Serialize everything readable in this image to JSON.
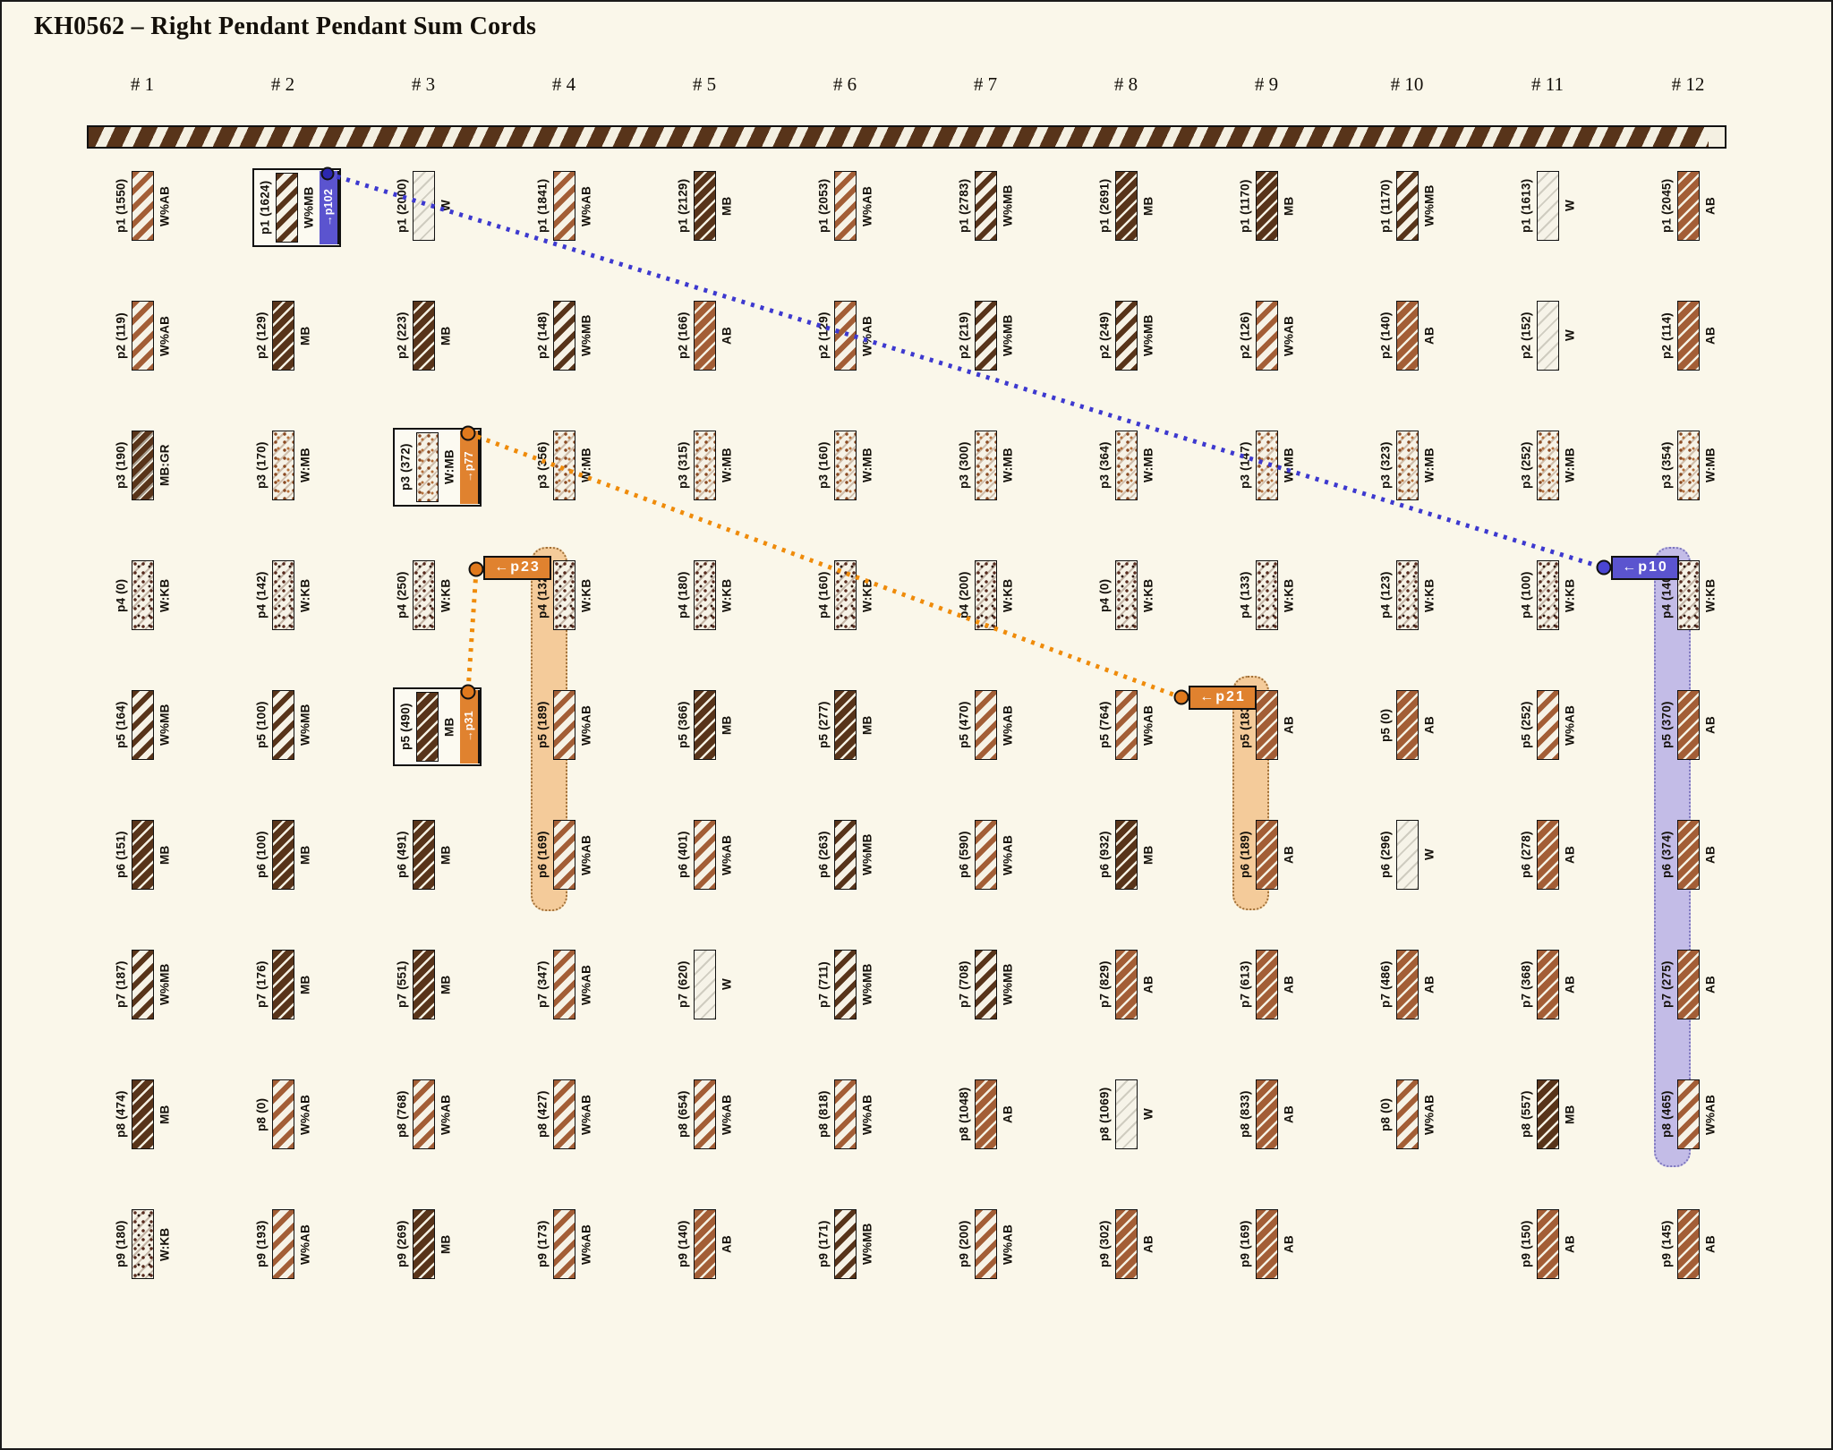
{
  "title": "KH0562 – Right Pendant Pendant Sum Cords",
  "palette": {
    "background": "#faf7ea",
    "cord_dark_brown": "#58341a",
    "cord_light_brown": "#a35e36",
    "blue_accent": "#5b54cf",
    "blue_line": "#3d39cf",
    "orange_accent": "#e0822f",
    "orange_line": "#ef8b0a"
  },
  "links": {
    "blue": {
      "source_badge": "→p102",
      "source_cell": "# 2 p1",
      "target_badge": "←p10",
      "band_column": "# 12",
      "band_rows": "p4–p8"
    },
    "orange_long": {
      "source_badge": "→p77",
      "source_cell": "# 3 p3",
      "target_badge": "←p21",
      "band_column": "# 9",
      "band_rows": "p5–p6"
    },
    "orange_short": {
      "source_badge": "→p31",
      "source_cell": "# 3 p5",
      "target_badge": "←p23",
      "band_column": "# 4",
      "band_rows": "p4–p6"
    }
  },
  "columns": [
    {
      "header": "# 1",
      "cells": [
        {
          "row": "p1",
          "label": "p1 (1550)",
          "code": "W%AB"
        },
        {
          "row": "p2",
          "label": "p2 (119)",
          "code": "W%AB"
        },
        {
          "row": "p3",
          "label": "p3 (190)",
          "code": "MB:GR"
        },
        {
          "row": "p4",
          "label": "p4 (0)",
          "code": "W:KB"
        },
        {
          "row": "p5",
          "label": "p5 (164)",
          "code": "W%MB"
        },
        {
          "row": "p6",
          "label": "p6 (151)",
          "code": "MB"
        },
        {
          "row": "p7",
          "label": "p7 (187)",
          "code": "W%MB"
        },
        {
          "row": "p8",
          "label": "p8 (474)",
          "code": "MB"
        },
        {
          "row": "p9",
          "label": "p9 (180)",
          "code": "W:KB"
        }
      ]
    },
    {
      "header": "# 2",
      "cells": [
        {
          "row": "p1",
          "label": "p1 (1624)",
          "code": "W%MB",
          "badge": "→p102",
          "accent": "blue"
        },
        {
          "row": "p2",
          "label": "p2 (129)",
          "code": "MB"
        },
        {
          "row": "p3",
          "label": "p3 (170)",
          "code": "W:MB"
        },
        {
          "row": "p4",
          "label": "p4 (142)",
          "code": "W:KB"
        },
        {
          "row": "p5",
          "label": "p5 (100)",
          "code": "W%MB"
        },
        {
          "row": "p6",
          "label": "p6 (100)",
          "code": "MB"
        },
        {
          "row": "p7",
          "label": "p7 (176)",
          "code": "MB"
        },
        {
          "row": "p8",
          "label": "p8 (0)",
          "code": "W%AB"
        },
        {
          "row": "p9",
          "label": "p9 (193)",
          "code": "W%AB"
        }
      ]
    },
    {
      "header": "# 3",
      "cells": [
        {
          "row": "p1",
          "label": "p1 (2000)",
          "code": "W"
        },
        {
          "row": "p2",
          "label": "p2 (223)",
          "code": "MB"
        },
        {
          "row": "p3",
          "label": "p3 (372)",
          "code": "W:MB",
          "badge": "→p77",
          "accent": "orange"
        },
        {
          "row": "p4",
          "label": "p4 (250)",
          "code": "W:KB"
        },
        {
          "row": "p5",
          "label": "p5 (490)",
          "code": "MB",
          "badge": "→p31",
          "accent": "orange"
        },
        {
          "row": "p6",
          "label": "p6 (491)",
          "code": "MB"
        },
        {
          "row": "p7",
          "label": "p7 (551)",
          "code": "MB"
        },
        {
          "row": "p8",
          "label": "p8 (768)",
          "code": "W%AB"
        },
        {
          "row": "p9",
          "label": "p9 (269)",
          "code": "MB"
        }
      ]
    },
    {
      "header": "# 4",
      "cells": [
        {
          "row": "p1",
          "label": "p1 (1841)",
          "code": "W%AB"
        },
        {
          "row": "p2",
          "label": "p2 (148)",
          "code": "W%MB"
        },
        {
          "row": "p3",
          "label": "p3 (356)",
          "code": "W:MB"
        },
        {
          "row": "p4",
          "label": "p4 (132)",
          "code": "W:KB",
          "band": true
        },
        {
          "row": "p5",
          "label": "p5 (189)",
          "code": "W%AB",
          "band": true
        },
        {
          "row": "p6",
          "label": "p6 (169)",
          "code": "W%AB",
          "band": true
        },
        {
          "row": "p7",
          "label": "p7 (347)",
          "code": "W%AB"
        },
        {
          "row": "p8",
          "label": "p8 (427)",
          "code": "W%AB"
        },
        {
          "row": "p9",
          "label": "p9 (173)",
          "code": "W%AB"
        }
      ]
    },
    {
      "header": "# 5",
      "cells": [
        {
          "row": "p1",
          "label": "p1 (2129)",
          "code": "MB"
        },
        {
          "row": "p2",
          "label": "p2 (166)",
          "code": "AB"
        },
        {
          "row": "p3",
          "label": "p3 (315)",
          "code": "W:MB"
        },
        {
          "row": "p4",
          "label": "p4 (180)",
          "code": "W:KB"
        },
        {
          "row": "p5",
          "label": "p5 (366)",
          "code": "MB"
        },
        {
          "row": "p6",
          "label": "p6 (401)",
          "code": "W%AB"
        },
        {
          "row": "p7",
          "label": "p7 (620)",
          "code": "W"
        },
        {
          "row": "p8",
          "label": "p8 (654)",
          "code": "W%AB"
        },
        {
          "row": "p9",
          "label": "p9 (140)",
          "code": "AB"
        }
      ]
    },
    {
      "header": "# 6",
      "cells": [
        {
          "row": "p1",
          "label": "p1 (2053)",
          "code": "W%AB"
        },
        {
          "row": "p2",
          "label": "p2 (129)",
          "code": "W%AB"
        },
        {
          "row": "p3",
          "label": "p3 (160)",
          "code": "W:MB"
        },
        {
          "row": "p4",
          "label": "p4 (160)",
          "code": "W:KB"
        },
        {
          "row": "p5",
          "label": "p5 (277)",
          "code": "MB"
        },
        {
          "row": "p6",
          "label": "p6 (263)",
          "code": "W%MB"
        },
        {
          "row": "p7",
          "label": "p7 (711)",
          "code": "W%MB"
        },
        {
          "row": "p8",
          "label": "p8 (818)",
          "code": "W%AB"
        },
        {
          "row": "p9",
          "label": "p9 (171)",
          "code": "W%MB"
        }
      ]
    },
    {
      "header": "# 7",
      "cells": [
        {
          "row": "p1",
          "label": "p1 (2783)",
          "code": "W%MB"
        },
        {
          "row": "p2",
          "label": "p2 (219)",
          "code": "W%MB"
        },
        {
          "row": "p3",
          "label": "p3 (300)",
          "code": "W:MB"
        },
        {
          "row": "p4",
          "label": "p4 (200)",
          "code": "W:KB"
        },
        {
          "row": "p5",
          "label": "p5 (470)",
          "code": "W%AB"
        },
        {
          "row": "p6",
          "label": "p6 (590)",
          "code": "W%AB"
        },
        {
          "row": "p7",
          "label": "p7 (708)",
          "code": "W%MB"
        },
        {
          "row": "p8",
          "label": "p8 (1048)",
          "code": "AB"
        },
        {
          "row": "p9",
          "label": "p9 (200)",
          "code": "W%AB"
        }
      ]
    },
    {
      "header": "# 8",
      "cells": [
        {
          "row": "p1",
          "label": "p1 (2691)",
          "code": "MB"
        },
        {
          "row": "p2",
          "label": "p2 (249)",
          "code": "W%MB"
        },
        {
          "row": "p3",
          "label": "p3 (364)",
          "code": "W:MB"
        },
        {
          "row": "p4",
          "label": "p4 (0)",
          "code": "W:KB"
        },
        {
          "row": "p5",
          "label": "p5 (764)",
          "code": "W%AB"
        },
        {
          "row": "p6",
          "label": "p6 (932)",
          "code": "MB"
        },
        {
          "row": "p7",
          "label": "p7 (829)",
          "code": "AB"
        },
        {
          "row": "p8",
          "label": "p8 (1069)",
          "code": "W"
        },
        {
          "row": "p9",
          "label": "p9 (302)",
          "code": "AB"
        }
      ]
    },
    {
      "header": "# 9",
      "cells": [
        {
          "row": "p1",
          "label": "p1 (1170)",
          "code": "MB"
        },
        {
          "row": "p2",
          "label": "p2 (126)",
          "code": "W%AB"
        },
        {
          "row": "p3",
          "label": "p3 (147)",
          "code": "W:MB"
        },
        {
          "row": "p4",
          "label": "p4 (133)",
          "code": "W:KB"
        },
        {
          "row": "p5",
          "label": "p5 (183)",
          "code": "AB",
          "band": true
        },
        {
          "row": "p6",
          "label": "p6 (189)",
          "code": "AB",
          "band": true
        },
        {
          "row": "p7",
          "label": "p7 (613)",
          "code": "AB"
        },
        {
          "row": "p8",
          "label": "p8 (833)",
          "code": "AB"
        },
        {
          "row": "p9",
          "label": "p9 (169)",
          "code": "AB"
        }
      ]
    },
    {
      "header": "# 10",
      "cells": [
        {
          "row": "p1",
          "label": "p1 (1170)",
          "code": "W%MB"
        },
        {
          "row": "p2",
          "label": "p2 (140)",
          "code": "AB"
        },
        {
          "row": "p3",
          "label": "p3 (323)",
          "code": "W:MB"
        },
        {
          "row": "p4",
          "label": "p4 (123)",
          "code": "W:KB"
        },
        {
          "row": "p5",
          "label": "p5 (0)",
          "code": "AB"
        },
        {
          "row": "p6",
          "label": "p6 (296)",
          "code": "W"
        },
        {
          "row": "p7",
          "label": "p7 (486)",
          "code": "AB"
        },
        {
          "row": "p8",
          "label": "p8 (0)",
          "code": "W%AB"
        }
      ]
    },
    {
      "header": "# 11",
      "cells": [
        {
          "row": "p1",
          "label": "p1 (1613)",
          "code": "W"
        },
        {
          "row": "p2",
          "label": "p2 (152)",
          "code": "W"
        },
        {
          "row": "p3",
          "label": "p3 (252)",
          "code": "W:MB"
        },
        {
          "row": "p4",
          "label": "p4 (100)",
          "code": "W:KB"
        },
        {
          "row": "p5",
          "label": "p5 (252)",
          "code": "W%AB"
        },
        {
          "row": "p6",
          "label": "p6 (278)",
          "code": "AB"
        },
        {
          "row": "p7",
          "label": "p7 (368)",
          "code": "AB"
        },
        {
          "row": "p8",
          "label": "p8 (557)",
          "code": "MB"
        },
        {
          "row": "p9",
          "label": "p9 (150)",
          "code": "AB"
        }
      ]
    },
    {
      "header": "# 12",
      "cells": [
        {
          "row": "p1",
          "label": "p1 (2045)",
          "code": "AB"
        },
        {
          "row": "p2",
          "label": "p2 (114)",
          "code": "AB"
        },
        {
          "row": "p3",
          "label": "p3 (354)",
          "code": "W:MB"
        },
        {
          "row": "p4",
          "label": "p4 (140)",
          "code": "W:KB",
          "band": true
        },
        {
          "row": "p5",
          "label": "p5 (370)",
          "code": "AB",
          "band": true
        },
        {
          "row": "p6",
          "label": "p6 (374)",
          "code": "AB",
          "band": true
        },
        {
          "row": "p7",
          "label": "p7 (275)",
          "code": "AB",
          "band": true
        },
        {
          "row": "p8",
          "label": "p8 (465)",
          "code": "W%AB",
          "band": true
        },
        {
          "row": "p9",
          "label": "p9 (145)",
          "code": "AB"
        }
      ]
    }
  ]
}
